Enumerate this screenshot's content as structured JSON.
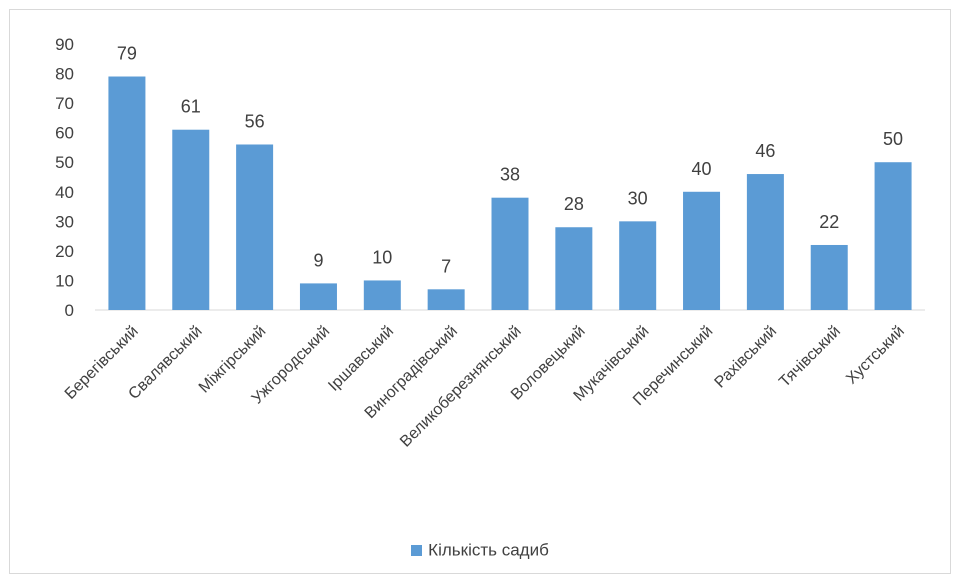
{
  "chart_data": {
    "type": "bar",
    "categories": [
      "Берегівський",
      "Свалявський",
      "Міжгірський",
      "Ужгородський",
      "Іршавський",
      "Виноградівський",
      "Великоберезнянський",
      "Воловецький",
      "Мукачівський",
      "Перечинський",
      "Рахівський",
      "Тячівський",
      "Хустський"
    ],
    "series": [
      {
        "name": "Кількість садиб",
        "values": [
          79,
          61,
          56,
          9,
          10,
          7,
          38,
          28,
          30,
          40,
          46,
          22,
          50
        ]
      }
    ],
    "yticks": [
      0,
      10,
      20,
      30,
      40,
      50,
      60,
      70,
      80,
      90
    ],
    "ylim": [
      0,
      90
    ],
    "legend_position": "bottom",
    "grid": false,
    "bar_color": "#5b9bd5"
  }
}
